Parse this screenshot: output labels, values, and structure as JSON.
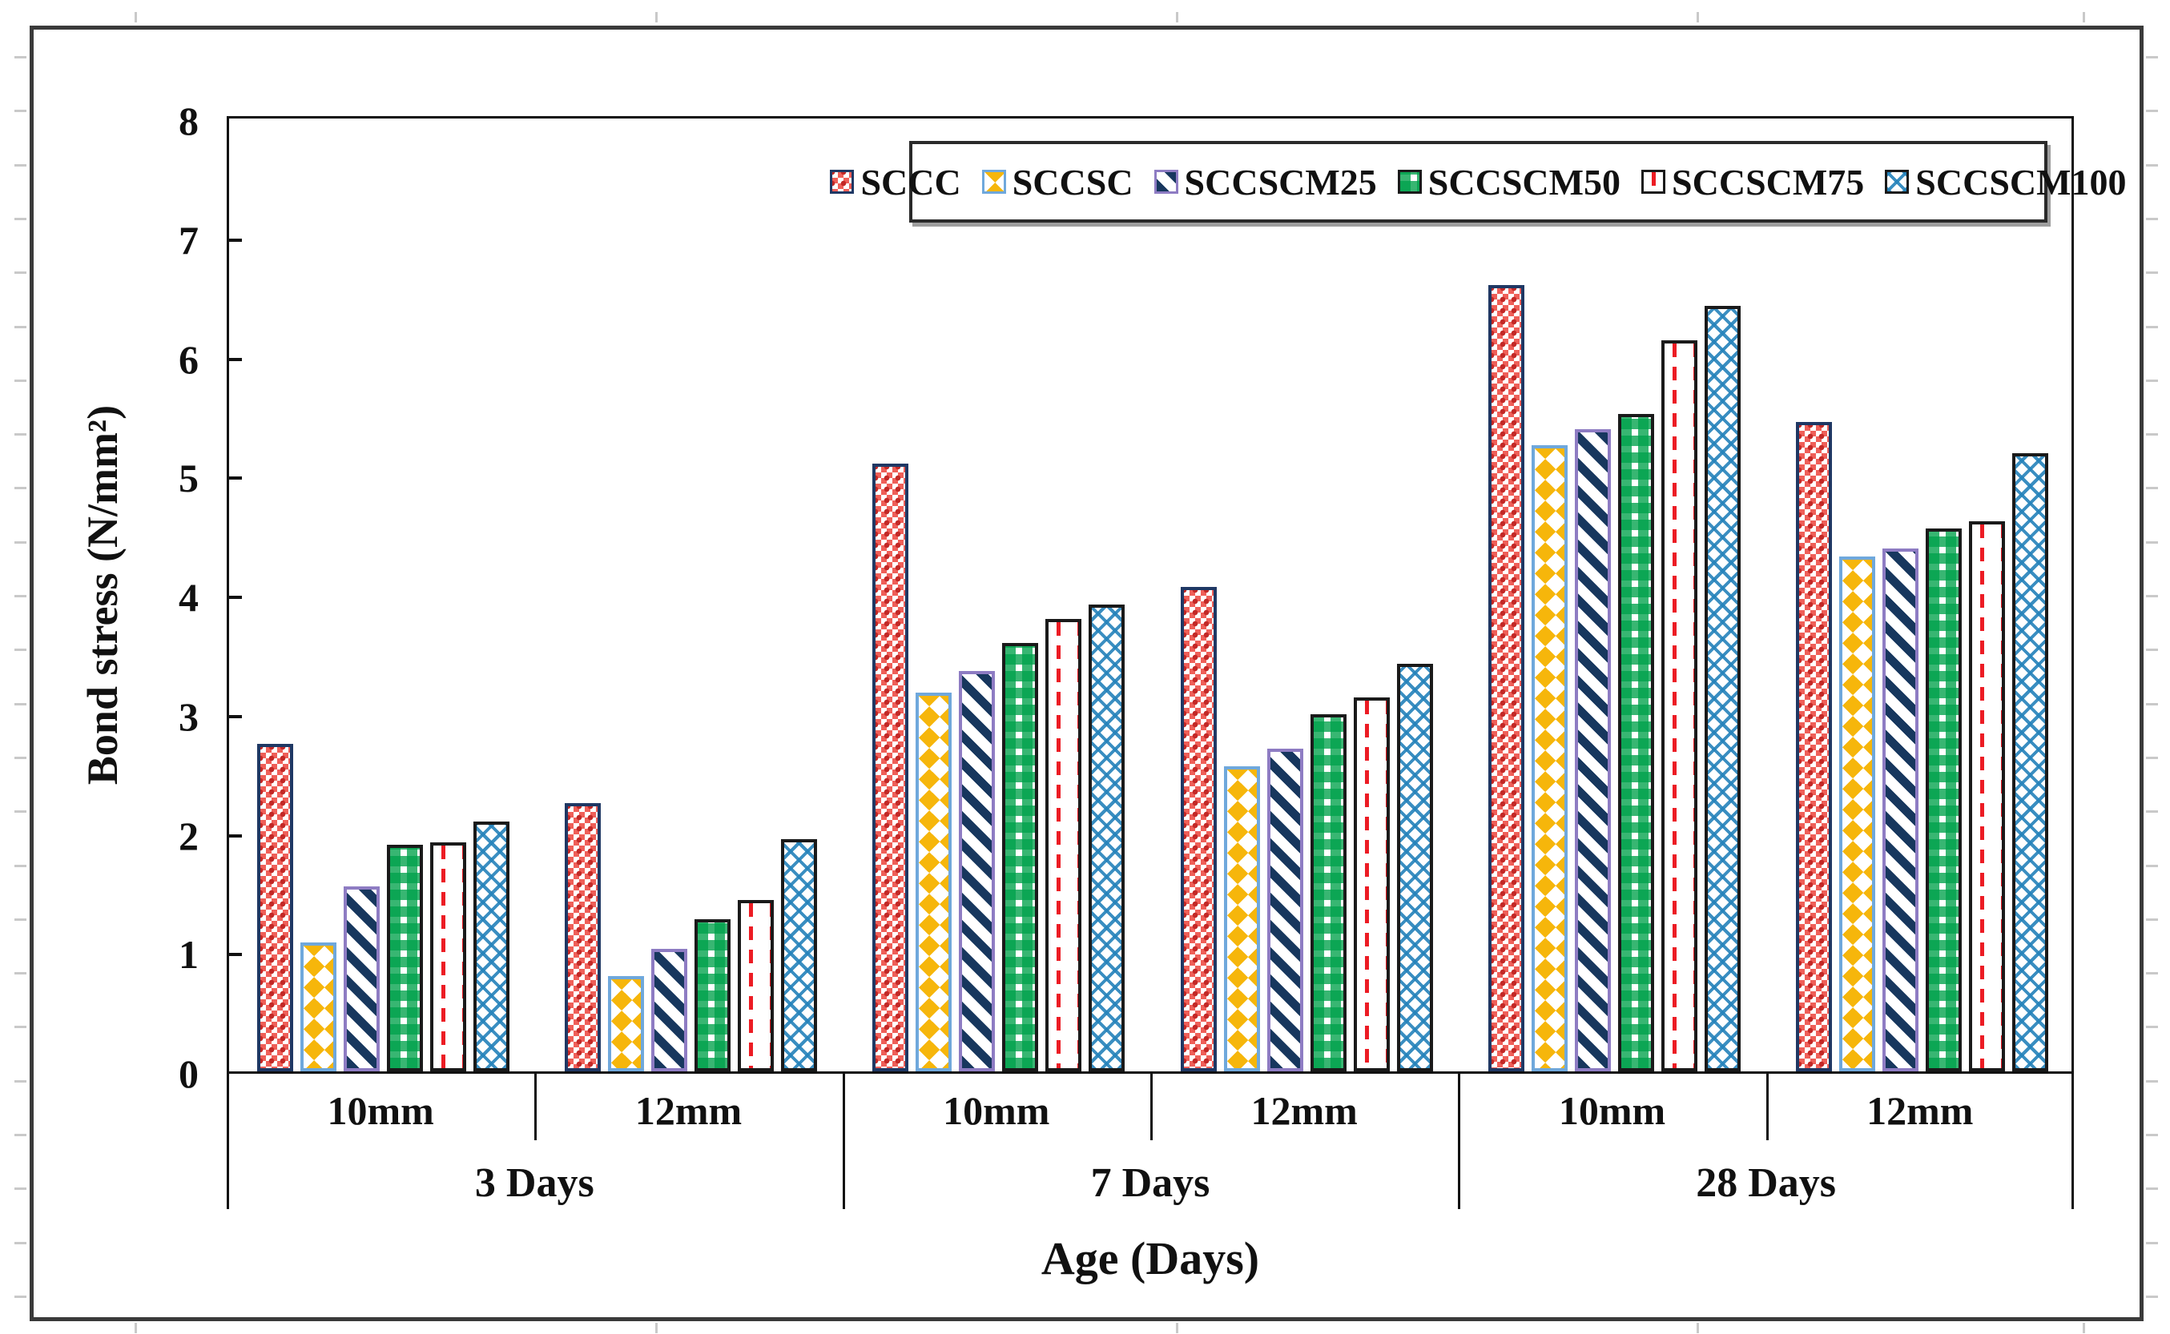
{
  "figure": {
    "background": "#ffffff",
    "frame_color": "#3a3a3a",
    "axis_color": "#111111",
    "ruler_tick_color": "#c9c9c9"
  },
  "axes": {
    "y": {
      "label": "Bond stress (N/mm²)",
      "min": 0,
      "max": 8,
      "ticks": [
        "0",
        "1",
        "2",
        "3",
        "4",
        "5",
        "6",
        "7",
        "8"
      ]
    },
    "x": {
      "label": "Age (Days)",
      "group_labels": [
        "3 Days",
        "7 Days",
        "28 Days"
      ],
      "subgroup_labels": [
        "10mm",
        "12mm"
      ]
    }
  },
  "chart_data": {
    "type": "bar",
    "title": "",
    "xlabel": "Age (Days)",
    "ylabel": "Bond stress (N/mm²)",
    "ylim": [
      0,
      8
    ],
    "grid": false,
    "legend_position": "top-right-inside",
    "series": [
      {
        "name": "SCCC",
        "pattern": "red-checker",
        "border_color": "#1f3864",
        "fill_color": "#ef5f58"
      },
      {
        "name": "SCCSC",
        "pattern": "yellow-diamond",
        "border_color": "#6fa8dc",
        "fill_color": "#f6b60b"
      },
      {
        "name": "SCCSCM25",
        "pattern": "navy-stripe",
        "border_color": "#8e7cc3",
        "fill_color": "#17375e"
      },
      {
        "name": "SCCSCM50",
        "pattern": "green-check",
        "border_color": "#1a1a1a",
        "fill_color": "#00a14b"
      },
      {
        "name": "SCCSCM75",
        "pattern": "red-dash",
        "border_color": "#1a1a1a",
        "fill_color": "#ec1c24"
      },
      {
        "name": "SCCSCM100",
        "pattern": "blue-lattice",
        "border_color": "#1a1a1a",
        "fill_color": "#2482ba"
      }
    ],
    "groups": [
      {
        "label": "3 Days",
        "subgroups": [
          {
            "label": "10mm",
            "values": [
              2.75,
              1.08,
              1.55,
              1.9,
              1.92,
              2.1
            ]
          },
          {
            "label": "12mm",
            "values": [
              2.25,
              0.8,
              1.03,
              1.28,
              1.44,
              1.95
            ]
          }
        ]
      },
      {
        "label": "7 Days",
        "subgroups": [
          {
            "label": "10mm",
            "values": [
              5.1,
              3.18,
              3.36,
              3.6,
              3.8,
              3.92
            ]
          },
          {
            "label": "12mm",
            "values": [
              4.07,
              2.56,
              2.71,
              3.0,
              3.14,
              3.42
            ]
          }
        ]
      },
      {
        "label": "28 Days",
        "subgroups": [
          {
            "label": "10mm",
            "values": [
              6.6,
              5.26,
              5.39,
              5.52,
              6.14,
              6.43
            ]
          },
          {
            "label": "12mm",
            "values": [
              5.45,
              4.32,
              4.39,
              4.56,
              4.62,
              5.19
            ]
          }
        ]
      }
    ]
  }
}
